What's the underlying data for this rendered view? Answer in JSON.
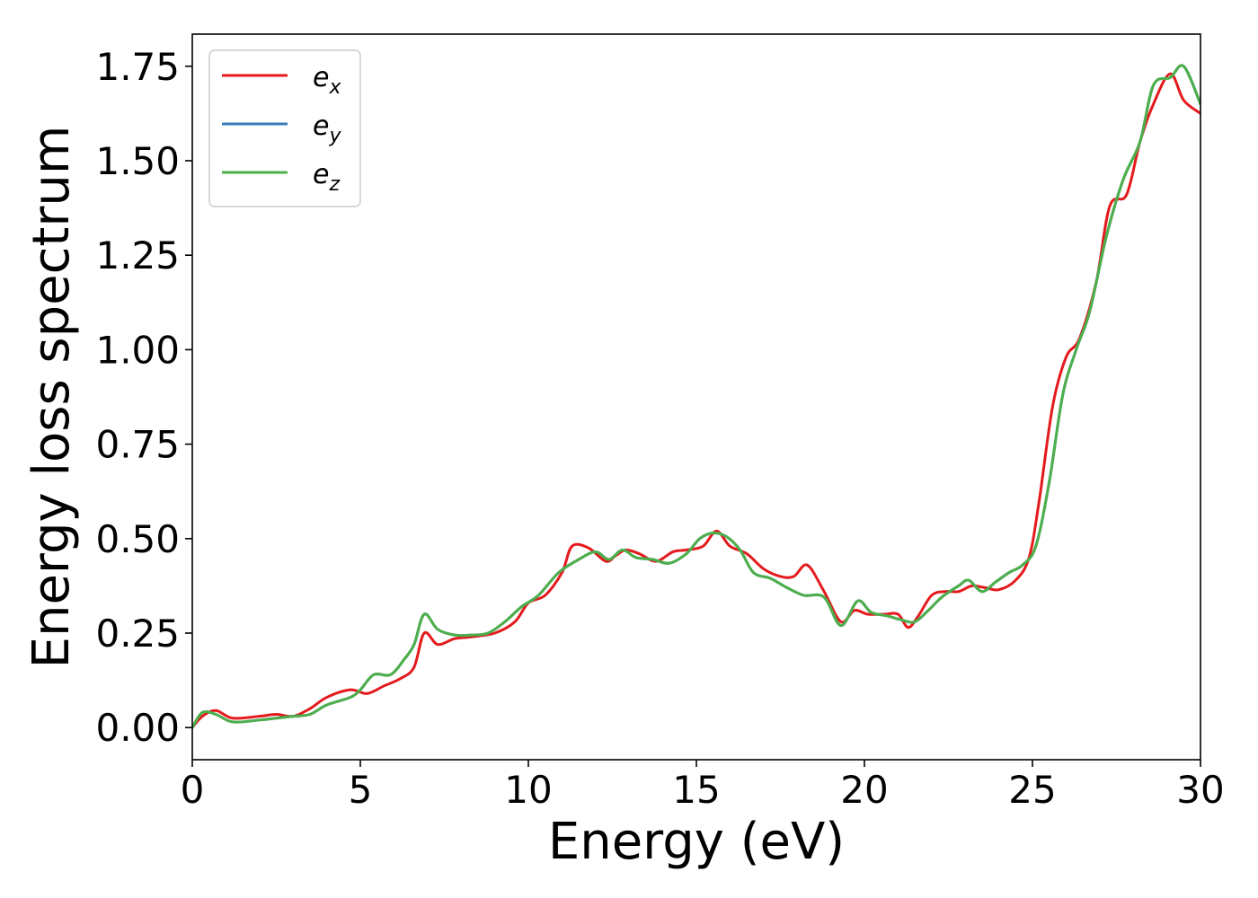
{
  "chart_data": {
    "type": "line",
    "xlabel": "Energy (eV)",
    "ylabel": "Energy loss spectrum",
    "xlim": [
      0,
      30
    ],
    "ylim": [
      -0.085,
      1.835
    ],
    "xticks": [
      0,
      5,
      10,
      15,
      20,
      25,
      30
    ],
    "xtick_labels": [
      "0",
      "5",
      "10",
      "15",
      "20",
      "25",
      "30"
    ],
    "yticks": [
      0,
      0.25,
      0.5,
      0.75,
      1.0,
      1.25,
      1.5,
      1.75
    ],
    "ytick_labels": [
      "0.00",
      "0.25",
      "0.50",
      "0.75",
      "1.00",
      "1.25",
      "1.50",
      "1.75"
    ],
    "grid": false,
    "legend_position": "top-left",
    "series": [
      {
        "name": "e",
        "subscript": "x",
        "color": "#e41a1c",
        "x": [
          0,
          0.3,
          0.7,
          1.2,
          2,
          2.5,
          3,
          3.5,
          4,
          4.7,
          5.2,
          5.7,
          6.2,
          6.6,
          6.9,
          7.3,
          7.8,
          8.3,
          9,
          9.6,
          10,
          10.5,
          11,
          11.3,
          11.8,
          12.3,
          12.6,
          12.9,
          13.3,
          13.8,
          14.3,
          14.7,
          15.2,
          15.6,
          16,
          16.5,
          17,
          17.5,
          17.9,
          18.3,
          18.8,
          19.3,
          19.7,
          20.1,
          20.6,
          21,
          21.3,
          21.6,
          22,
          22.4,
          22.8,
          23.2,
          23.6,
          24,
          24.5,
          24.9,
          25.2,
          25.6,
          26,
          26.4,
          26.9,
          27.3,
          27.8,
          28.2,
          28.6,
          29.1,
          29.5,
          30
        ],
        "y": [
          0,
          0.03,
          0.045,
          0.025,
          0.03,
          0.035,
          0.03,
          0.05,
          0.08,
          0.1,
          0.09,
          0.11,
          0.13,
          0.16,
          0.25,
          0.22,
          0.235,
          0.24,
          0.25,
          0.28,
          0.33,
          0.35,
          0.41,
          0.48,
          0.475,
          0.44,
          0.455,
          0.47,
          0.46,
          0.44,
          0.465,
          0.47,
          0.48,
          0.52,
          0.48,
          0.46,
          0.42,
          0.4,
          0.4,
          0.43,
          0.36,
          0.28,
          0.31,
          0.3,
          0.3,
          0.3,
          0.265,
          0.295,
          0.35,
          0.36,
          0.36,
          0.375,
          0.37,
          0.365,
          0.39,
          0.45,
          0.6,
          0.85,
          0.98,
          1.03,
          1.18,
          1.38,
          1.41,
          1.55,
          1.65,
          1.73,
          1.66,
          1.625
        ]
      },
      {
        "name": "e",
        "subscript": "y",
        "color": "#377eb8",
        "x": [
          0,
          0.3,
          0.7,
          1.2,
          2,
          2.5,
          3,
          3.5,
          4,
          4.7,
          5,
          5.4,
          5.9,
          6.3,
          6.6,
          6.9,
          7.3,
          7.8,
          8.3,
          8.8,
          9.3,
          9.8,
          10.3,
          10.9,
          11.5,
          12,
          12.4,
          12.8,
          13.2,
          13.7,
          14.2,
          14.7,
          15.1,
          15.5,
          15.9,
          16.3,
          16.7,
          17.2,
          17.7,
          18.2,
          18.8,
          19.3,
          19.8,
          20.2,
          20.7,
          21.1,
          21.5,
          21.9,
          22.3,
          22.8,
          23.1,
          23.5,
          23.9,
          24.3,
          24.7,
          25.1,
          25.5,
          25.9,
          26.3,
          26.7,
          27.2,
          27.7,
          28.2,
          28.6,
          29.1,
          29.5,
          30
        ],
        "y": [
          0,
          0.04,
          0.035,
          0.015,
          0.02,
          0.025,
          0.03,
          0.035,
          0.06,
          0.08,
          0.1,
          0.14,
          0.14,
          0.18,
          0.22,
          0.3,
          0.26,
          0.245,
          0.245,
          0.25,
          0.28,
          0.32,
          0.35,
          0.41,
          0.445,
          0.465,
          0.445,
          0.47,
          0.45,
          0.445,
          0.435,
          0.46,
          0.5,
          0.515,
          0.505,
          0.47,
          0.41,
          0.395,
          0.37,
          0.35,
          0.345,
          0.27,
          0.335,
          0.305,
          0.295,
          0.285,
          0.28,
          0.31,
          0.345,
          0.375,
          0.39,
          0.36,
          0.385,
          0.41,
          0.43,
          0.48,
          0.65,
          0.88,
          1.0,
          1.1,
          1.3,
          1.45,
          1.55,
          1.7,
          1.72,
          1.75,
          1.65
        ]
      },
      {
        "name": "e",
        "subscript": "z",
        "color": "#4daf4a",
        "x": [
          0,
          0.3,
          0.7,
          1.2,
          2,
          2.5,
          3,
          3.5,
          4,
          4.7,
          5,
          5.4,
          5.9,
          6.3,
          6.6,
          6.9,
          7.3,
          7.8,
          8.3,
          8.8,
          9.3,
          9.8,
          10.3,
          10.9,
          11.5,
          12,
          12.4,
          12.8,
          13.2,
          13.7,
          14.2,
          14.7,
          15.1,
          15.5,
          15.9,
          16.3,
          16.7,
          17.2,
          17.7,
          18.2,
          18.8,
          19.3,
          19.8,
          20.2,
          20.7,
          21.1,
          21.5,
          21.9,
          22.3,
          22.8,
          23.1,
          23.5,
          23.9,
          24.3,
          24.7,
          25.1,
          25.5,
          25.9,
          26.3,
          26.7,
          27.2,
          27.7,
          28.2,
          28.6,
          29.1,
          29.5,
          30
        ],
        "y": [
          0,
          0.04,
          0.035,
          0.015,
          0.02,
          0.025,
          0.03,
          0.035,
          0.06,
          0.08,
          0.1,
          0.14,
          0.14,
          0.18,
          0.22,
          0.3,
          0.26,
          0.245,
          0.245,
          0.25,
          0.28,
          0.32,
          0.35,
          0.41,
          0.445,
          0.465,
          0.445,
          0.47,
          0.45,
          0.445,
          0.435,
          0.46,
          0.5,
          0.515,
          0.505,
          0.47,
          0.41,
          0.395,
          0.37,
          0.35,
          0.345,
          0.27,
          0.335,
          0.305,
          0.295,
          0.285,
          0.28,
          0.31,
          0.345,
          0.375,
          0.39,
          0.36,
          0.385,
          0.41,
          0.43,
          0.48,
          0.65,
          0.88,
          1.0,
          1.1,
          1.3,
          1.45,
          1.55,
          1.7,
          1.72,
          1.75,
          1.65
        ]
      }
    ]
  }
}
